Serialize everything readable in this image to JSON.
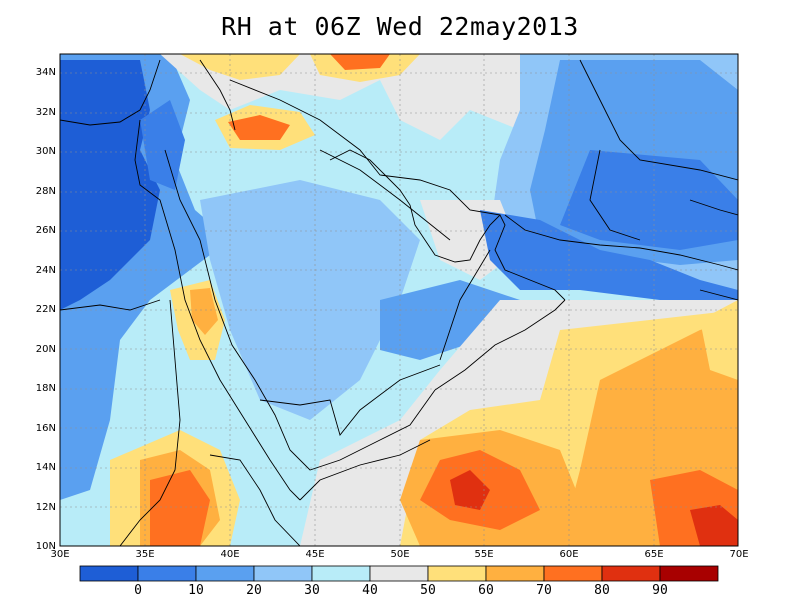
{
  "title": "RH at 06Z Wed 22may2013",
  "map": {
    "lon_range": [
      30,
      70
    ],
    "lat_range": [
      10,
      35
    ],
    "grid": true,
    "lat_ticks": [
      "10N",
      "12N",
      "14N",
      "16N",
      "18N",
      "20N",
      "22N",
      "24N",
      "26N",
      "28N",
      "30N",
      "32N",
      "34N"
    ],
    "lon_ticks": [
      "30E",
      "35E",
      "40E",
      "45E",
      "50E",
      "55E",
      "60E",
      "65E",
      "70E"
    ]
  },
  "colorbar": {
    "labels": [
      "0",
      "10",
      "20",
      "30",
      "40",
      "50",
      "60",
      "70",
      "80",
      "90"
    ],
    "colors": [
      "#1e5ed6",
      "#3a7fe8",
      "#5aa0f0",
      "#90c6f8",
      "#b8ecf8",
      "#e8e8e8",
      "#ffe07a",
      "#ffb040",
      "#ff7020",
      "#e03010",
      "#a80000"
    ]
  }
}
